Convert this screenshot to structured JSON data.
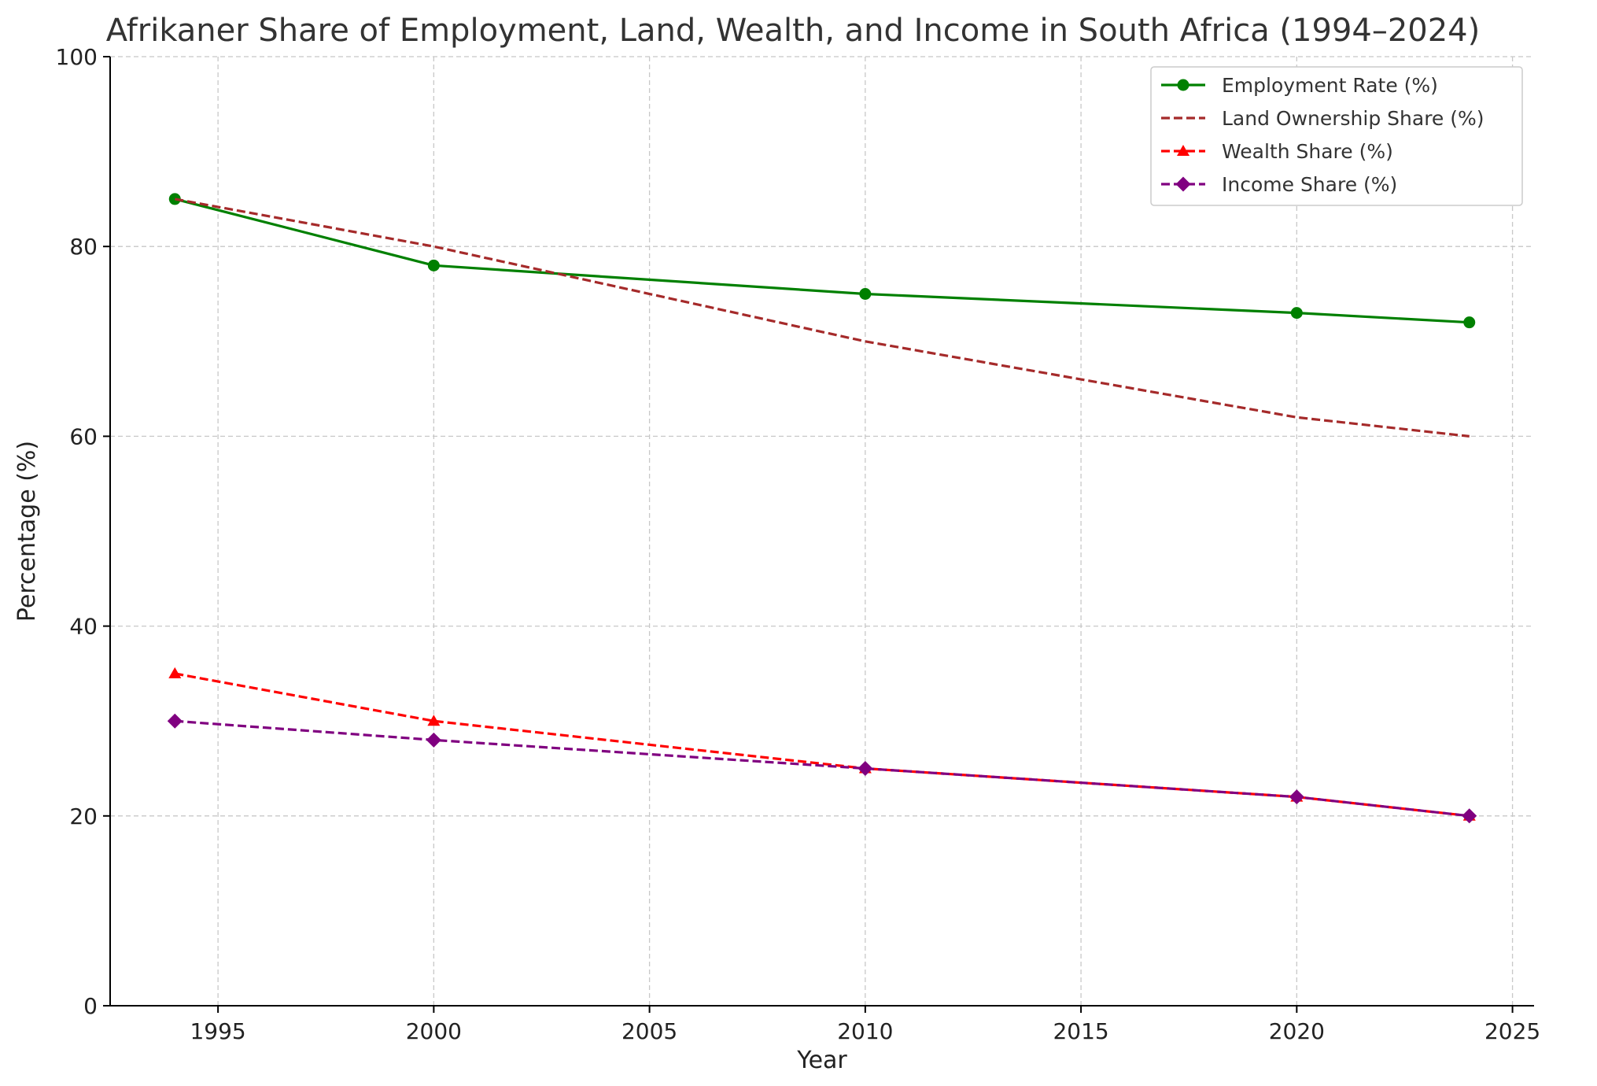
{
  "chart_data": {
    "type": "line",
    "title": "Afrikaner Share of Employment, Land, Wealth, and Income in South Africa (1994–2024)",
    "xlabel": "Year",
    "ylabel": "Percentage (%)",
    "xlim": [
      1992.5,
      2025.5
    ],
    "ylim": [
      0,
      100
    ],
    "xticks": [
      1995,
      2000,
      2005,
      2010,
      2015,
      2020,
      2025
    ],
    "yticks": [
      0,
      20,
      40,
      60,
      80,
      100
    ],
    "grid": true,
    "legend_position": "top-right",
    "x": [
      1994,
      2000,
      2010,
      2020,
      2024
    ],
    "series": [
      {
        "name": "Employment Rate (%)",
        "values": [
          85,
          78,
          75,
          73,
          72
        ],
        "color": "#008000",
        "line_style": "solid",
        "marker": "circle"
      },
      {
        "name": "Land Ownership Share (%)",
        "values": [
          85,
          80,
          70,
          62,
          60
        ],
        "color": "#a52a2a",
        "line_style": "dashed",
        "marker": "none"
      },
      {
        "name": "Wealth Share (%)",
        "values": [
          35,
          30,
          25,
          22,
          20
        ],
        "color": "#ff0000",
        "line_style": "dashed",
        "marker": "triangle"
      },
      {
        "name": "Income Share (%)",
        "values": [
          30,
          28,
          25,
          22,
          20
        ],
        "color": "#800080",
        "line_style": "dashed",
        "marker": "diamond"
      }
    ]
  }
}
